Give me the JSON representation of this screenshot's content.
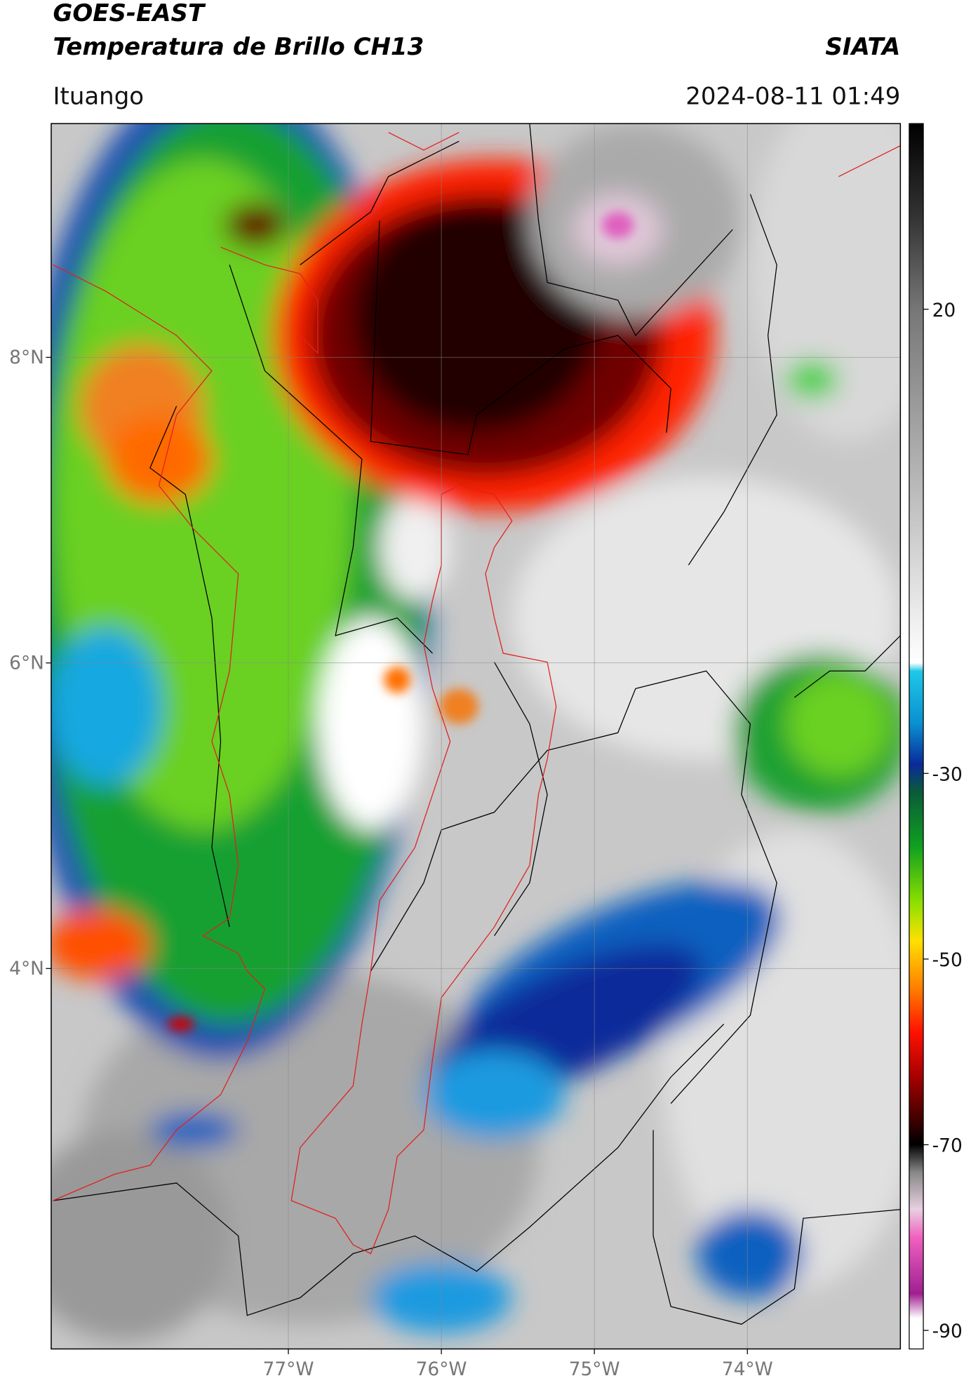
{
  "header": {
    "title": "GOES-EAST",
    "subtitle": "Temperatura de Brillo CH13",
    "source": "SIATA",
    "location": "Ituango",
    "datetime": "2024-08-11 01:49"
  },
  "map": {
    "xlim": [
      -78.55,
      -73.0
    ],
    "ylim": [
      1.51,
      9.53
    ],
    "xticks": [
      {
        "value": -77,
        "label": "77°W"
      },
      {
        "value": -76,
        "label": "76°W"
      },
      {
        "value": -75,
        "label": "75°W"
      },
      {
        "value": -74,
        "label": "74°W"
      }
    ],
    "yticks": [
      {
        "value": 4,
        "label": "4°N"
      },
      {
        "value": 6,
        "label": "6°N"
      },
      {
        "value": 8,
        "label": "8°N"
      }
    ],
    "grid": true
  },
  "colorbar": {
    "ylim": [
      -92,
      40
    ],
    "yticks": [
      -90,
      -70,
      -50,
      -30,
      20
    ]
  }
}
